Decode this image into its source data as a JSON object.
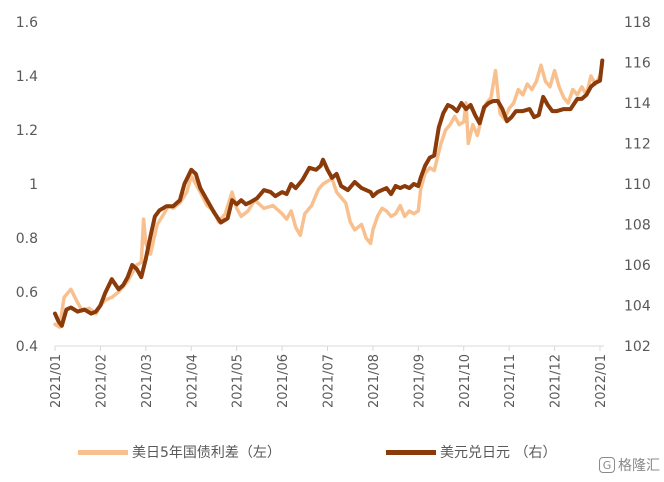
{
  "chart_data": {
    "type": "line",
    "title": "",
    "x_ticks": [
      "2021/01",
      "2021/02",
      "2021/03",
      "2021/04",
      "2021/05",
      "2021/06",
      "2021/07",
      "2021/08",
      "2021/09",
      "2021/10",
      "2021/11",
      "2021/12",
      "2022/01"
    ],
    "y_left": {
      "min": 0.4,
      "max": 1.6,
      "ticks": [
        "0.4",
        "0.6",
        "0.8",
        "1",
        "1.2",
        "1.4",
        "1.6"
      ]
    },
    "y_right": {
      "min": 102,
      "max": 118,
      "ticks": [
        "102",
        "104",
        "106",
        "108",
        "110",
        "112",
        "114",
        "116",
        "118"
      ]
    },
    "grid": false,
    "legend_position": "bottom",
    "series": [
      {
        "name": "美日5年国债利差（左）",
        "axis": "left",
        "color": "#F9C08F",
        "points": [
          [
            0.0,
            0.48
          ],
          [
            0.1,
            0.47
          ],
          [
            0.2,
            0.58
          ],
          [
            0.35,
            0.61
          ],
          [
            0.5,
            0.56
          ],
          [
            0.6,
            0.53
          ],
          [
            0.75,
            0.54
          ],
          [
            0.9,
            0.52
          ],
          [
            1.0,
            0.55
          ],
          [
            1.1,
            0.57
          ],
          [
            1.25,
            0.58
          ],
          [
            1.4,
            0.6
          ],
          [
            1.5,
            0.62
          ],
          [
            1.6,
            0.64
          ],
          [
            1.7,
            0.67
          ],
          [
            1.8,
            0.7
          ],
          [
            1.9,
            0.71
          ],
          [
            1.95,
            0.87
          ],
          [
            2.0,
            0.78
          ],
          [
            2.1,
            0.74
          ],
          [
            2.25,
            0.85
          ],
          [
            2.4,
            0.89
          ],
          [
            2.5,
            0.92
          ],
          [
            2.6,
            0.91
          ],
          [
            2.75,
            0.93
          ],
          [
            2.9,
            0.97
          ],
          [
            3.0,
            1.03
          ],
          [
            3.1,
            1.0
          ],
          [
            3.2,
            0.97
          ],
          [
            3.35,
            0.92
          ],
          [
            3.5,
            0.9
          ],
          [
            3.6,
            0.86
          ],
          [
            3.75,
            0.89
          ],
          [
            3.9,
            0.97
          ],
          [
            4.0,
            0.91
          ],
          [
            4.1,
            0.88
          ],
          [
            4.25,
            0.9
          ],
          [
            4.4,
            0.94
          ],
          [
            4.6,
            0.91
          ],
          [
            4.8,
            0.92
          ],
          [
            5.0,
            0.89
          ],
          [
            5.1,
            0.87
          ],
          [
            5.2,
            0.9
          ],
          [
            5.3,
            0.84
          ],
          [
            5.4,
            0.81
          ],
          [
            5.5,
            0.89
          ],
          [
            5.65,
            0.92
          ],
          [
            5.8,
            0.98
          ],
          [
            5.9,
            1.0
          ],
          [
            6.0,
            1.01
          ],
          [
            6.1,
            1.02
          ],
          [
            6.2,
            0.97
          ],
          [
            6.3,
            0.95
          ],
          [
            6.4,
            0.93
          ],
          [
            6.5,
            0.86
          ],
          [
            6.6,
            0.83
          ],
          [
            6.75,
            0.85
          ],
          [
            6.85,
            0.8
          ],
          [
            6.95,
            0.78
          ],
          [
            7.0,
            0.83
          ],
          [
            7.1,
            0.88
          ],
          [
            7.2,
            0.91
          ],
          [
            7.3,
            0.9
          ],
          [
            7.4,
            0.88
          ],
          [
            7.5,
            0.89
          ],
          [
            7.6,
            0.92
          ],
          [
            7.7,
            0.88
          ],
          [
            7.8,
            0.9
          ],
          [
            7.9,
            0.89
          ],
          [
            8.0,
            0.9
          ],
          [
            8.05,
            0.98
          ],
          [
            8.15,
            1.04
          ],
          [
            8.25,
            1.06
          ],
          [
            8.35,
            1.05
          ],
          [
            8.5,
            1.15
          ],
          [
            8.6,
            1.2
          ],
          [
            8.7,
            1.22
          ],
          [
            8.8,
            1.25
          ],
          [
            8.9,
            1.22
          ],
          [
            9.0,
            1.23
          ],
          [
            9.05,
            1.3
          ],
          [
            9.1,
            1.15
          ],
          [
            9.2,
            1.22
          ],
          [
            9.3,
            1.18
          ],
          [
            9.4,
            1.25
          ],
          [
            9.5,
            1.3
          ],
          [
            9.6,
            1.32
          ],
          [
            9.7,
            1.42
          ],
          [
            9.8,
            1.26
          ],
          [
            9.9,
            1.24
          ],
          [
            10.0,
            1.28
          ],
          [
            10.1,
            1.3
          ],
          [
            10.2,
            1.35
          ],
          [
            10.3,
            1.33
          ],
          [
            10.4,
            1.37
          ],
          [
            10.5,
            1.35
          ],
          [
            10.6,
            1.38
          ],
          [
            10.7,
            1.44
          ],
          [
            10.8,
            1.38
          ],
          [
            10.9,
            1.36
          ],
          [
            11.0,
            1.42
          ],
          [
            11.1,
            1.36
          ],
          [
            11.2,
            1.32
          ],
          [
            11.3,
            1.3
          ],
          [
            11.4,
            1.35
          ],
          [
            11.5,
            1.33
          ],
          [
            11.6,
            1.36
          ],
          [
            11.7,
            1.33
          ],
          [
            11.8,
            1.4
          ],
          [
            11.9,
            1.37
          ],
          [
            12.0,
            1.4
          ],
          [
            12.05,
            1.44
          ]
        ]
      },
      {
        "name": "美元兑日元 （右）",
        "axis": "right",
        "color": "#8B3A0A",
        "points": [
          [
            0.0,
            103.6
          ],
          [
            0.08,
            103.2
          ],
          [
            0.15,
            103.0
          ],
          [
            0.25,
            103.8
          ],
          [
            0.35,
            103.9
          ],
          [
            0.5,
            103.7
          ],
          [
            0.65,
            103.8
          ],
          [
            0.8,
            103.6
          ],
          [
            0.9,
            103.7
          ],
          [
            1.0,
            104.0
          ],
          [
            1.1,
            104.6
          ],
          [
            1.25,
            105.3
          ],
          [
            1.4,
            104.8
          ],
          [
            1.5,
            105.0
          ],
          [
            1.6,
            105.4
          ],
          [
            1.7,
            106.0
          ],
          [
            1.8,
            105.8
          ],
          [
            1.9,
            105.4
          ],
          [
            2.0,
            106.3
          ],
          [
            2.1,
            107.4
          ],
          [
            2.2,
            108.4
          ],
          [
            2.3,
            108.7
          ],
          [
            2.45,
            108.9
          ],
          [
            2.6,
            108.9
          ],
          [
            2.75,
            109.2
          ],
          [
            2.85,
            110.0
          ],
          [
            3.0,
            110.7
          ],
          [
            3.1,
            110.5
          ],
          [
            3.2,
            109.8
          ],
          [
            3.35,
            109.2
          ],
          [
            3.5,
            108.6
          ],
          [
            3.65,
            108.1
          ],
          [
            3.8,
            108.3
          ],
          [
            3.9,
            109.2
          ],
          [
            4.0,
            109.0
          ],
          [
            4.1,
            109.2
          ],
          [
            4.2,
            109.0
          ],
          [
            4.3,
            109.1
          ],
          [
            4.45,
            109.3
          ],
          [
            4.6,
            109.7
          ],
          [
            4.75,
            109.6
          ],
          [
            4.85,
            109.4
          ],
          [
            5.0,
            109.6
          ],
          [
            5.1,
            109.5
          ],
          [
            5.2,
            110.0
          ],
          [
            5.3,
            109.8
          ],
          [
            5.45,
            110.2
          ],
          [
            5.6,
            110.8
          ],
          [
            5.75,
            110.7
          ],
          [
            5.85,
            110.9
          ],
          [
            5.9,
            111.2
          ],
          [
            6.0,
            110.7
          ],
          [
            6.1,
            110.3
          ],
          [
            6.2,
            110.5
          ],
          [
            6.3,
            109.9
          ],
          [
            6.45,
            109.7
          ],
          [
            6.6,
            110.1
          ],
          [
            6.75,
            109.8
          ],
          [
            6.85,
            109.7
          ],
          [
            6.95,
            109.6
          ],
          [
            7.0,
            109.4
          ],
          [
            7.1,
            109.6
          ],
          [
            7.2,
            109.7
          ],
          [
            7.3,
            109.8
          ],
          [
            7.4,
            109.5
          ],
          [
            7.5,
            109.9
          ],
          [
            7.6,
            109.8
          ],
          [
            7.7,
            109.9
          ],
          [
            7.8,
            109.8
          ],
          [
            7.9,
            110.0
          ],
          [
            8.0,
            109.9
          ],
          [
            8.05,
            110.3
          ],
          [
            8.15,
            110.9
          ],
          [
            8.25,
            111.3
          ],
          [
            8.35,
            111.4
          ],
          [
            8.45,
            112.8
          ],
          [
            8.55,
            113.5
          ],
          [
            8.65,
            113.9
          ],
          [
            8.75,
            113.8
          ],
          [
            8.85,
            113.6
          ],
          [
            8.95,
            114.0
          ],
          [
            9.05,
            113.7
          ],
          [
            9.15,
            113.9
          ],
          [
            9.25,
            113.4
          ],
          [
            9.35,
            113.0
          ],
          [
            9.45,
            113.8
          ],
          [
            9.55,
            114.0
          ],
          [
            9.65,
            114.1
          ],
          [
            9.75,
            114.1
          ],
          [
            9.85,
            113.7
          ],
          [
            9.95,
            113.1
          ],
          [
            10.05,
            113.3
          ],
          [
            10.15,
            113.6
          ],
          [
            10.3,
            113.6
          ],
          [
            10.45,
            113.7
          ],
          [
            10.55,
            113.3
          ],
          [
            10.65,
            113.4
          ],
          [
            10.75,
            114.3
          ],
          [
            10.85,
            113.9
          ],
          [
            10.95,
            113.6
          ],
          [
            11.05,
            113.6
          ],
          [
            11.2,
            113.7
          ],
          [
            11.35,
            113.7
          ],
          [
            11.5,
            114.2
          ],
          [
            11.6,
            114.2
          ],
          [
            11.7,
            114.4
          ],
          [
            11.8,
            114.8
          ],
          [
            11.9,
            115.0
          ],
          [
            12.0,
            115.1
          ],
          [
            12.05,
            116.1
          ]
        ]
      }
    ]
  },
  "legend": {
    "items": [
      {
        "label": "美日5年国债利差（左）",
        "color": "#F9C08F"
      },
      {
        "label": "美元兑日元 （右）",
        "color": "#8B3A0A"
      }
    ]
  },
  "watermark": {
    "icon": "gelonghui-logo-icon",
    "icon_glyph": "G",
    "text": "格隆汇"
  }
}
